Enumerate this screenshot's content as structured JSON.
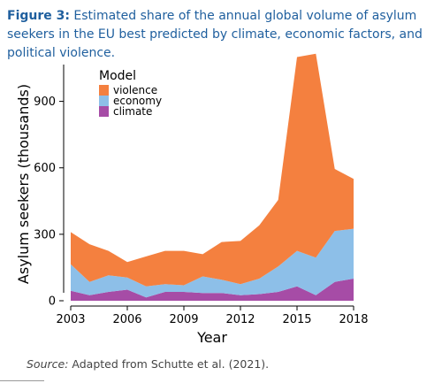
{
  "caption": {
    "label": "Figure 3:",
    "text": " Estimated share of the annual global volume of asylum seekers in the EU best predicted by climate, economic factors, and political violence."
  },
  "source": {
    "label": "Source:",
    "text": " Adapted from Schutte et al. (2021)."
  },
  "chart_data": {
    "type": "area",
    "stacked": true,
    "x": [
      2003,
      2004,
      2005,
      2006,
      2007,
      2008,
      2009,
      2010,
      2011,
      2012,
      2013,
      2014,
      2015,
      2016,
      2017,
      2018
    ],
    "series": [
      {
        "name": "climate",
        "color": "#a64ca6",
        "values": [
          45,
          25,
          40,
          50,
          15,
          40,
          40,
          35,
          35,
          25,
          30,
          40,
          65,
          25,
          85,
          100
        ]
      },
      {
        "name": "economy",
        "color": "#8dbfe8",
        "values": [
          120,
          60,
          75,
          55,
          50,
          35,
          30,
          75,
          60,
          50,
          70,
          115,
          160,
          170,
          230,
          225
        ]
      },
      {
        "name": "violence",
        "color": "#f4803f",
        "values": [
          145,
          170,
          110,
          70,
          135,
          150,
          155,
          100,
          170,
          195,
          240,
          300,
          875,
          920,
          280,
          225
        ]
      }
    ],
    "xlabel": "Year",
    "ylabel": "Asylum seekers (thousands)",
    "xlim": [
      2003,
      2018
    ],
    "ylim": [
      0,
      1110
    ],
    "xticks": [
      2003,
      2006,
      2009,
      2012,
      2015,
      2018
    ],
    "yticks": [
      0,
      300,
      600,
      900
    ],
    "legend": {
      "title": "Model",
      "placement": "top-left",
      "entries": [
        "violence",
        "economy",
        "climate"
      ]
    },
    "grid": false
  }
}
